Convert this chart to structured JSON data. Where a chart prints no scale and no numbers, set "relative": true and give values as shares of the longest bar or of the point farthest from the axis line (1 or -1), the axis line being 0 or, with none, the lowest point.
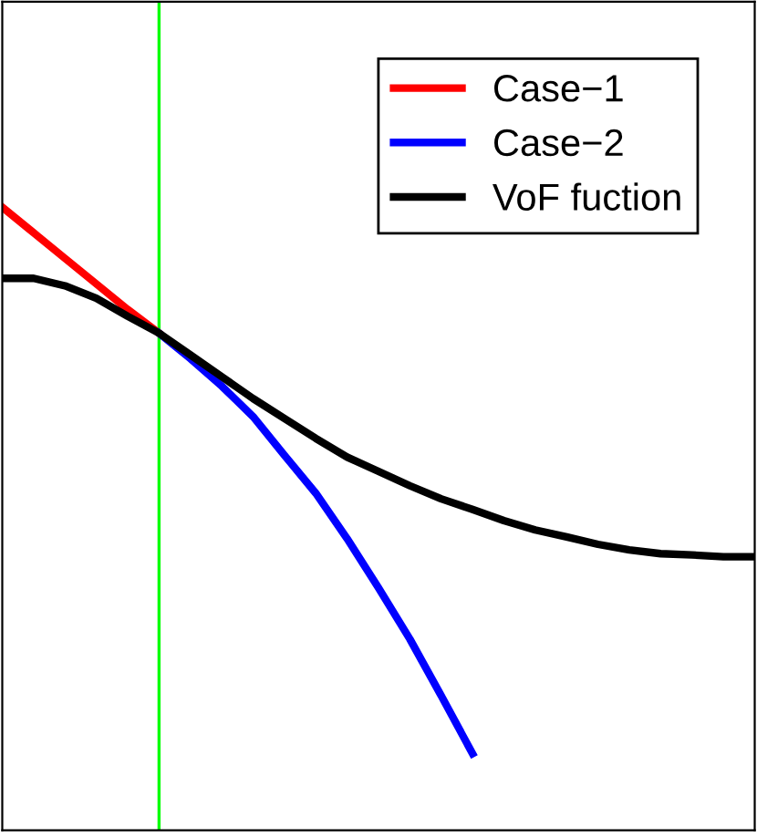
{
  "chart_data": {
    "type": "line",
    "relative": true,
    "legend": "top right",
    "line_style": "solid",
    "categories": [
      null,
      null,
      null,
      null,
      null,
      null,
      null,
      null,
      null,
      null,
      null,
      null,
      null,
      null,
      null,
      null,
      null,
      null,
      null,
      null,
      null,
      null,
      null,
      null,
      null
    ],
    "series": [
      {
        "name": "Case−1",
        "color": "#ff0000",
        "values": [
          1.0,
          0.959,
          0.918,
          0.877,
          0.836,
          0.798,
          null,
          null,
          null,
          null,
          null,
          null,
          null,
          null,
          null,
          null,
          null,
          null,
          null,
          null,
          null,
          null,
          null,
          null,
          null
        ]
      },
      {
        "name": "Case−2",
        "color": "#0000ff",
        "values": [
          null,
          null,
          null,
          null,
          null,
          0.798,
          0.757,
          0.713,
          0.664,
          0.602,
          0.541,
          0.468,
          0.389,
          0.307,
          0.216,
          0.123,
          null,
          null,
          null,
          null,
          null,
          null,
          null,
          null,
          null
        ]
      },
      {
        "name": "VoF fuction",
        "color": "#000000",
        "values": [
          0.886,
          0.886,
          0.874,
          0.854,
          0.825,
          0.798,
          0.763,
          0.728,
          0.693,
          0.661,
          0.629,
          0.599,
          0.576,
          0.553,
          0.532,
          0.515,
          0.497,
          0.482,
          0.471,
          0.459,
          0.45,
          0.444,
          0.442,
          0.439,
          0.439
        ]
      }
    ]
  }
}
